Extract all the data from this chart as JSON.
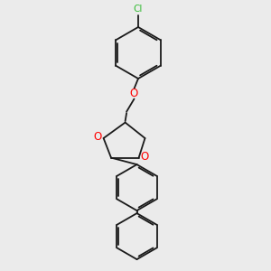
{
  "background_color": "#ebebeb",
  "bond_color": "#1a1a1a",
  "oxygen_color": "#ff0000",
  "chlorine_color": "#33bb33",
  "line_width": 1.3,
  "figsize": [
    3.0,
    3.0
  ],
  "dpi": 100,
  "xlim": [
    0,
    10
  ],
  "ylim": [
    0,
    10
  ]
}
